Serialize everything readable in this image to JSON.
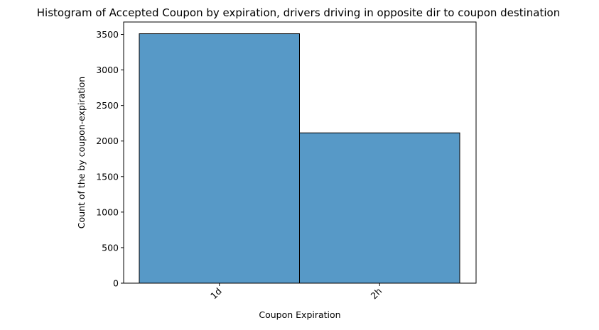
{
  "chart_data": {
    "type": "bar",
    "title": "Histogram of Accepted Coupon by expiration, drivers driving in opposite dir to coupon destination",
    "xlabel": "Coupon Expiration",
    "ylabel": "Count of the by coupon-expiration",
    "categories": [
      "1d",
      "2h"
    ],
    "values": [
      3510,
      2115
    ],
    "ylim": [
      0,
      3675
    ],
    "yticks": [
      0,
      500,
      1000,
      1500,
      2000,
      2500,
      3000,
      3500
    ],
    "grid": false,
    "legend": "none",
    "colors": {
      "bar_fill": "#5799c7",
      "bar_edge": "#000000",
      "axis": "#000000"
    }
  }
}
